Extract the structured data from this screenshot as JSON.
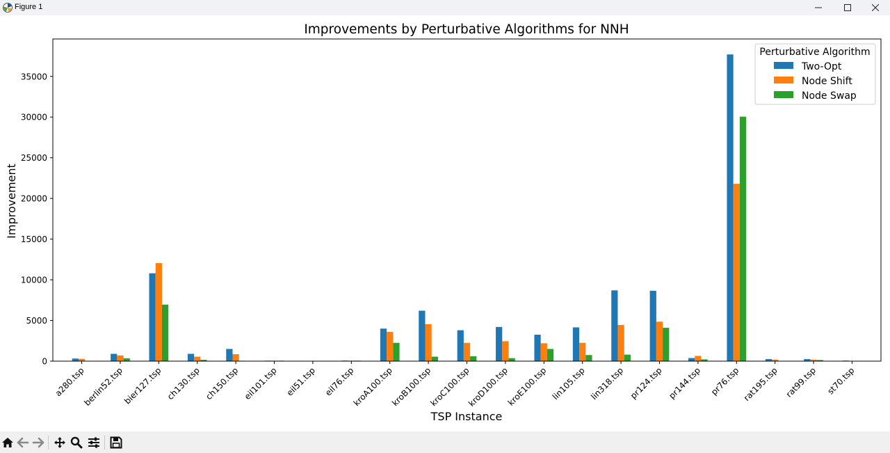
{
  "window": {
    "title": "Figure 1",
    "icons": {
      "app": "matplotlib-icon",
      "minimize": "minimize-icon",
      "maximize": "maximize-icon",
      "close": "close-icon"
    }
  },
  "toolbar": {
    "items": [
      "home-icon",
      "back-arrow-icon",
      "forward-arrow-icon",
      "pan-move-icon",
      "zoom-magnifier-icon",
      "configure-subplots-icon",
      "save-floppy-icon"
    ]
  },
  "chart_data": {
    "type": "bar",
    "title": "Improvements by Perturbative Algorithms for NNH",
    "xlabel": "TSP Instance",
    "ylabel": "Improvement",
    "ylim": [
      0,
      39600
    ],
    "yticks": [
      0,
      5000,
      10000,
      15000,
      20000,
      25000,
      30000,
      35000
    ],
    "grid": false,
    "legend": {
      "title": "Perturbative Algorithm",
      "placement": "top-right"
    },
    "categories": [
      "a280.tsp",
      "berlin52.tsp",
      "bier127.tsp",
      "ch130.tsp",
      "ch150.tsp",
      "eil101.tsp",
      "eil51.tsp",
      "eil76.tsp",
      "kroA100.tsp",
      "kroB100.tsp",
      "kroC100.tsp",
      "kroD100.tsp",
      "kroE100.tsp",
      "lin105.tsp",
      "lin318.tsp",
      "pr124.tsp",
      "pr144.tsp",
      "pr76.tsp",
      "rat195.tsp",
      "rat99.tsp",
      "st70.tsp"
    ],
    "series": [
      {
        "name": "Two-Opt",
        "color": "#1f77b4",
        "values": [
          320,
          900,
          10800,
          900,
          1500,
          60,
          30,
          70,
          4000,
          6200,
          3800,
          4200,
          3250,
          4150,
          8700,
          8650,
          380,
          37700,
          250,
          250,
          70
        ]
      },
      {
        "name": "Node Shift",
        "color": "#ff7f0e",
        "values": [
          280,
          700,
          12050,
          550,
          850,
          60,
          40,
          60,
          3600,
          4550,
          2250,
          2450,
          2200,
          2250,
          4450,
          4850,
          650,
          21800,
          190,
          190,
          40
        ]
      },
      {
        "name": "Node Swap",
        "color": "#2ca02c",
        "values": [
          40,
          350,
          6950,
          160,
          50,
          60,
          10,
          60,
          2250,
          550,
          600,
          370,
          1500,
          750,
          800,
          4100,
          220,
          30050,
          40,
          140,
          20
        ]
      }
    ]
  }
}
